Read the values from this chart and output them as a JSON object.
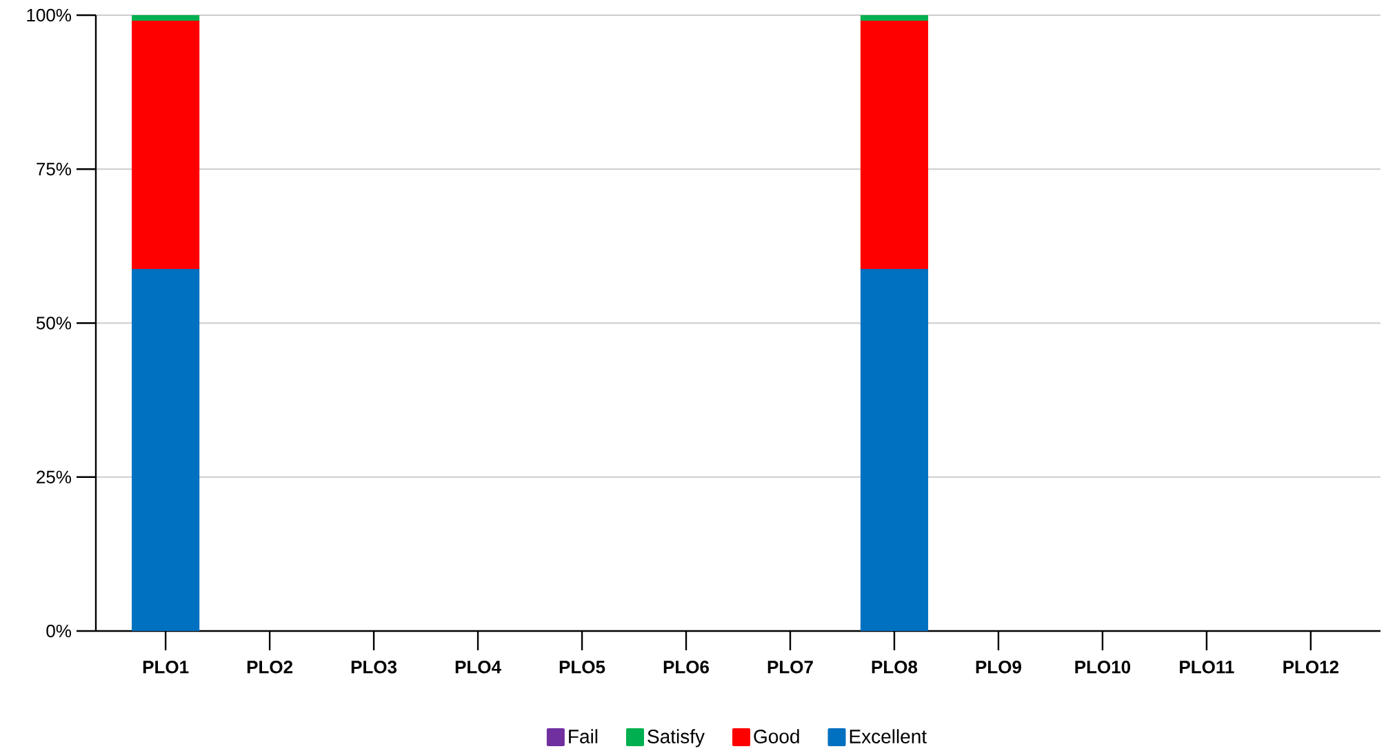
{
  "chart_data": {
    "type": "bar",
    "stacked": true,
    "categories": [
      "PLO1",
      "PLO2",
      "PLO3",
      "PLO4",
      "PLO5",
      "PLO6",
      "PLO7",
      "PLO8",
      "PLO9",
      "PLO10",
      "PLO11",
      "PLO12"
    ],
    "series": [
      {
        "name": "Excellent",
        "color": "#0070c0",
        "values": [
          58.8,
          0,
          0,
          0,
          0,
          0,
          0,
          58.8,
          0,
          0,
          0,
          0
        ]
      },
      {
        "name": "Good",
        "color": "#ff0000",
        "values": [
          40.3,
          0,
          0,
          0,
          0,
          0,
          0,
          40.3,
          0,
          0,
          0,
          0
        ]
      },
      {
        "name": "Satisfy",
        "color": "#00b050",
        "values": [
          0.9,
          0,
          0,
          0,
          0,
          0,
          0,
          0.9,
          0,
          0,
          0,
          0
        ]
      },
      {
        "name": "Fail",
        "color": "#7030a0",
        "values": [
          0,
          0,
          0,
          0,
          0,
          0,
          0,
          0,
          0,
          0,
          0,
          0
        ]
      }
    ],
    "ylim": [
      0,
      100
    ],
    "yticks": [
      {
        "value": 0,
        "label": "0%"
      },
      {
        "value": 25,
        "label": "25%"
      },
      {
        "value": 50,
        "label": "50%"
      },
      {
        "value": 75,
        "label": "75%"
      },
      {
        "value": 100,
        "label": "100%"
      }
    ],
    "grid": "y",
    "legend": "bottom"
  }
}
